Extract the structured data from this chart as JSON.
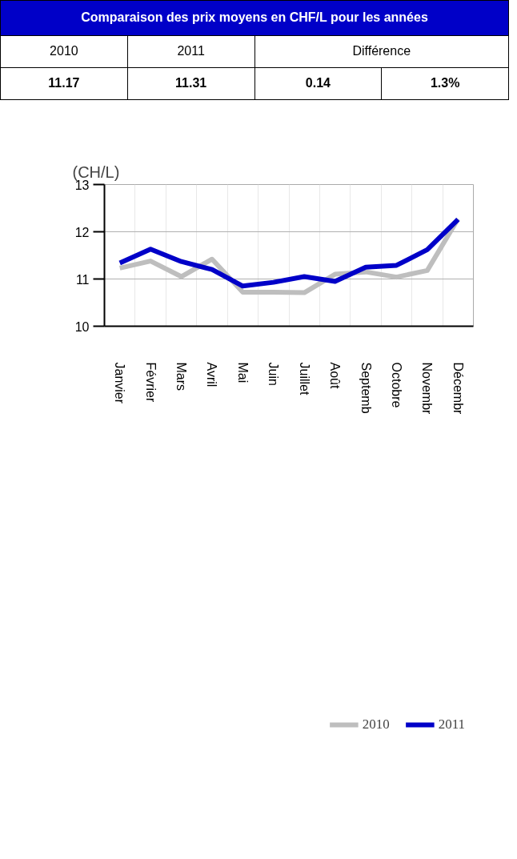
{
  "chart_data": {
    "type": "line",
    "title": "Comparaison des prix moyens en CHF/L pour les années",
    "annotations": [
      "2010",
      "2011",
      "Différence",
      "11.17",
      "11.31",
      "0.14",
      "1.3%"
    ],
    "ylabel": "(CH/L)",
    "categories": [
      "Janvier",
      "Février",
      "Mars",
      "Avril",
      "Mai",
      "Juin",
      "Juillet",
      "Août",
      "Septemb",
      "Octobre",
      "Novembr",
      "Décembr"
    ],
    "series": [
      {
        "name": "2010",
        "color": "#bebebe",
        "values": [
          11.23,
          11.38,
          11.05,
          11.42,
          10.72,
          10.72,
          10.71,
          11.1,
          11.15,
          11.04,
          11.18,
          12.27
        ]
      },
      {
        "name": "2011",
        "color": "#0000c8",
        "values": [
          11.34,
          11.63,
          11.37,
          11.2,
          10.85,
          10.93,
          11.05,
          10.95,
          11.25,
          11.29,
          11.62,
          12.26
        ]
      }
    ],
    "ylim": [
      10,
      13
    ],
    "yticks": [
      10,
      11,
      12,
      13
    ],
    "grid": true,
    "legend": "bottom right",
    "line_style": "solid",
    "marker": "none"
  }
}
